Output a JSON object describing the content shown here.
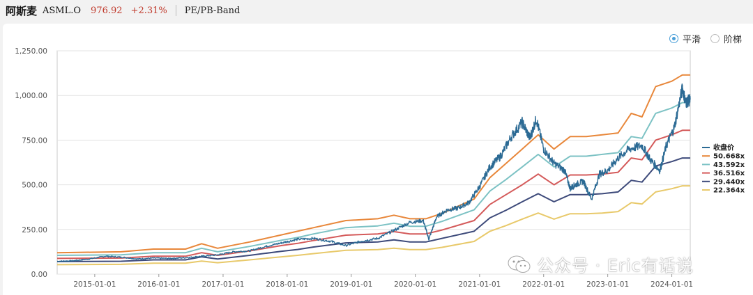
{
  "header": {
    "company_name": "阿斯麦",
    "ticker": "ASML.O",
    "price": "976.92",
    "change_pct": "+2.31%",
    "chart_mode": "PE/PB-Band"
  },
  "view_options": [
    {
      "label": "平滑",
      "selected": true
    },
    {
      "label": "阶梯",
      "selected": false
    }
  ],
  "watermark": "公众号 · Eric有话说",
  "colors": {
    "price": "#2b6a94",
    "band1": "#e8873a",
    "band2": "#7cc2c4",
    "band3": "#d45a5a",
    "band4": "#3d4a7a",
    "band5": "#e8c96a"
  },
  "chart_data": {
    "type": "line",
    "title": "",
    "xlabel": "",
    "ylabel": "",
    "y_ticks": [
      "0.00",
      "250.00",
      "500.00",
      "750.00",
      "1,000.00",
      "1,250.00"
    ],
    "ylim": [
      0,
      1250
    ],
    "x_ticks": [
      "2015-01-01",
      "2016-01-01",
      "2017-01-01",
      "2018-01-01",
      "2019-01-01",
      "2020-01-01",
      "2021-01-01",
      "2022-01-01",
      "2023-01-01",
      "2024-01-01"
    ],
    "xlim": [
      "2014-06-01",
      "2024-04-15"
    ],
    "grid": "horizontal",
    "legend_position": "right",
    "series": [
      {
        "name": "收盘价",
        "color": "#2b6a94",
        "points": [
          [
            "2014-06-01",
            72
          ],
          [
            "2014-09-01",
            75
          ],
          [
            "2014-12-01",
            85
          ],
          [
            "2015-03-01",
            100
          ],
          [
            "2015-06-01",
            95
          ],
          [
            "2015-09-01",
            85
          ],
          [
            "2015-12-01",
            90
          ],
          [
            "2016-03-01",
            88
          ],
          [
            "2016-06-01",
            92
          ],
          [
            "2016-09-01",
            100
          ],
          [
            "2016-12-01",
            108
          ],
          [
            "2017-03-01",
            125
          ],
          [
            "2017-06-01",
            130
          ],
          [
            "2017-09-01",
            155
          ],
          [
            "2017-12-01",
            175
          ],
          [
            "2018-03-01",
            195
          ],
          [
            "2018-06-01",
            200
          ],
          [
            "2018-09-01",
            185
          ],
          [
            "2018-12-01",
            160
          ],
          [
            "2019-03-01",
            185
          ],
          [
            "2019-06-01",
            200
          ],
          [
            "2019-09-01",
            245
          ],
          [
            "2019-12-01",
            290
          ],
          [
            "2020-02-15",
            300
          ],
          [
            "2020-03-18",
            195
          ],
          [
            "2020-05-01",
            320
          ],
          [
            "2020-07-01",
            360
          ],
          [
            "2020-09-01",
            370
          ],
          [
            "2020-11-01",
            400
          ],
          [
            "2021-01-01",
            490
          ],
          [
            "2021-03-01",
            600
          ],
          [
            "2021-05-01",
            660
          ],
          [
            "2021-07-01",
            770
          ],
          [
            "2021-09-01",
            850
          ],
          [
            "2021-10-15",
            760
          ],
          [
            "2021-11-20",
            870
          ],
          [
            "2022-01-01",
            700
          ],
          [
            "2022-03-01",
            620
          ],
          [
            "2022-05-01",
            580
          ],
          [
            "2022-06-01",
            480
          ],
          [
            "2022-07-01",
            500
          ],
          [
            "2022-08-15",
            520
          ],
          [
            "2022-10-01",
            420
          ],
          [
            "2022-11-15",
            560
          ],
          [
            "2023-01-01",
            580
          ],
          [
            "2023-03-01",
            650
          ],
          [
            "2023-05-01",
            700
          ],
          [
            "2023-07-15",
            720
          ],
          [
            "2023-09-01",
            640
          ],
          [
            "2023-10-25",
            580
          ],
          [
            "2023-12-01",
            720
          ],
          [
            "2024-01-15",
            820
          ],
          [
            "2024-03-01",
            1040
          ],
          [
            "2024-03-20",
            960
          ],
          [
            "2024-04-15",
            977
          ]
        ]
      },
      {
        "name": "50.668x",
        "color": "#e8873a",
        "points": [
          [
            "2014-06-01",
            120
          ],
          [
            "2015-06-01",
            125
          ],
          [
            "2015-12-01",
            140
          ],
          [
            "2016-06-01",
            140
          ],
          [
            "2016-09-01",
            170
          ],
          [
            "2016-12-01",
            145
          ],
          [
            "2017-06-01",
            180
          ],
          [
            "2017-12-01",
            220
          ],
          [
            "2018-03-01",
            240
          ],
          [
            "2018-06-01",
            260
          ],
          [
            "2018-12-01",
            300
          ],
          [
            "2019-06-01",
            310
          ],
          [
            "2019-09-01",
            330
          ],
          [
            "2019-12-01",
            310
          ],
          [
            "2020-03-01",
            310
          ],
          [
            "2020-06-01",
            340
          ],
          [
            "2020-12-01",
            420
          ],
          [
            "2021-03-01",
            540
          ],
          [
            "2021-06-01",
            620
          ],
          [
            "2021-09-01",
            700
          ],
          [
            "2021-12-01",
            780
          ],
          [
            "2022-03-01",
            700
          ],
          [
            "2022-06-01",
            770
          ],
          [
            "2022-09-01",
            770
          ],
          [
            "2022-12-01",
            780
          ],
          [
            "2023-03-01",
            790
          ],
          [
            "2023-05-15",
            900
          ],
          [
            "2023-07-15",
            880
          ],
          [
            "2023-10-01",
            1050
          ],
          [
            "2024-01-01",
            1080
          ],
          [
            "2024-03-01",
            1115
          ],
          [
            "2024-04-15",
            1115
          ]
        ]
      },
      {
        "name": "43.592x",
        "color": "#7cc2c4",
        "points": [
          [
            "2014-06-01",
            105
          ],
          [
            "2015-06-01",
            108
          ],
          [
            "2015-12-01",
            120
          ],
          [
            "2016-06-01",
            120
          ],
          [
            "2016-09-01",
            145
          ],
          [
            "2016-12-01",
            125
          ],
          [
            "2017-06-01",
            155
          ],
          [
            "2017-12-01",
            190
          ],
          [
            "2018-03-01",
            205
          ],
          [
            "2018-06-01",
            225
          ],
          [
            "2018-12-01",
            260
          ],
          [
            "2019-06-01",
            270
          ],
          [
            "2019-09-01",
            285
          ],
          [
            "2019-12-01",
            268
          ],
          [
            "2020-03-01",
            268
          ],
          [
            "2020-06-01",
            295
          ],
          [
            "2020-12-01",
            360
          ],
          [
            "2021-03-01",
            465
          ],
          [
            "2021-06-01",
            530
          ],
          [
            "2021-09-01",
            600
          ],
          [
            "2021-12-01",
            670
          ],
          [
            "2022-03-01",
            600
          ],
          [
            "2022-06-01",
            660
          ],
          [
            "2022-09-01",
            660
          ],
          [
            "2022-12-01",
            670
          ],
          [
            "2023-03-01",
            680
          ],
          [
            "2023-05-15",
            770
          ],
          [
            "2023-07-15",
            760
          ],
          [
            "2023-10-01",
            900
          ],
          [
            "2024-01-01",
            930
          ],
          [
            "2024-03-01",
            960
          ],
          [
            "2024-04-15",
            960
          ]
        ]
      },
      {
        "name": "36.516x",
        "color": "#d45a5a",
        "points": [
          [
            "2014-06-01",
            88
          ],
          [
            "2015-06-01",
            90
          ],
          [
            "2015-12-01",
            100
          ],
          [
            "2016-06-01",
            100
          ],
          [
            "2016-09-01",
            120
          ],
          [
            "2016-12-01",
            105
          ],
          [
            "2017-06-01",
            130
          ],
          [
            "2017-12-01",
            160
          ],
          [
            "2018-03-01",
            172
          ],
          [
            "2018-06-01",
            188
          ],
          [
            "2018-12-01",
            218
          ],
          [
            "2019-06-01",
            225
          ],
          [
            "2019-09-01",
            238
          ],
          [
            "2019-12-01",
            225
          ],
          [
            "2020-03-01",
            225
          ],
          [
            "2020-06-01",
            247
          ],
          [
            "2020-12-01",
            300
          ],
          [
            "2021-03-01",
            390
          ],
          [
            "2021-06-01",
            445
          ],
          [
            "2021-09-01",
            500
          ],
          [
            "2021-12-01",
            560
          ],
          [
            "2022-03-01",
            500
          ],
          [
            "2022-06-01",
            555
          ],
          [
            "2022-09-01",
            555
          ],
          [
            "2022-12-01",
            560
          ],
          [
            "2023-03-01",
            570
          ],
          [
            "2023-05-15",
            650
          ],
          [
            "2023-07-15",
            640
          ],
          [
            "2023-10-01",
            750
          ],
          [
            "2024-01-01",
            780
          ],
          [
            "2024-03-01",
            805
          ],
          [
            "2024-04-15",
            805
          ]
        ]
      },
      {
        "name": "29.440x",
        "color": "#3d4a7a",
        "points": [
          [
            "2014-06-01",
            70
          ],
          [
            "2015-06-01",
            72
          ],
          [
            "2015-12-01",
            80
          ],
          [
            "2016-06-01",
            80
          ],
          [
            "2016-09-01",
            97
          ],
          [
            "2016-12-01",
            85
          ],
          [
            "2017-06-01",
            105
          ],
          [
            "2017-12-01",
            128
          ],
          [
            "2018-03-01",
            138
          ],
          [
            "2018-06-01",
            152
          ],
          [
            "2018-12-01",
            175
          ],
          [
            "2019-06-01",
            180
          ],
          [
            "2019-09-01",
            192
          ],
          [
            "2019-12-01",
            180
          ],
          [
            "2020-03-01",
            180
          ],
          [
            "2020-06-01",
            200
          ],
          [
            "2020-12-01",
            240
          ],
          [
            "2021-03-01",
            315
          ],
          [
            "2021-06-01",
            358
          ],
          [
            "2021-09-01",
            405
          ],
          [
            "2021-12-01",
            450
          ],
          [
            "2022-03-01",
            405
          ],
          [
            "2022-06-01",
            445
          ],
          [
            "2022-09-01",
            445
          ],
          [
            "2022-12-01",
            450
          ],
          [
            "2023-03-01",
            460
          ],
          [
            "2023-05-15",
            525
          ],
          [
            "2023-07-15",
            515
          ],
          [
            "2023-10-01",
            605
          ],
          [
            "2024-01-01",
            630
          ],
          [
            "2024-03-01",
            650
          ],
          [
            "2024-04-15",
            650
          ]
        ]
      },
      {
        "name": "22.364x",
        "color": "#e8c96a",
        "points": [
          [
            "2014-06-01",
            53
          ],
          [
            "2015-06-01",
            55
          ],
          [
            "2015-12-01",
            61
          ],
          [
            "2016-06-01",
            61
          ],
          [
            "2016-09-01",
            73
          ],
          [
            "2016-12-01",
            64
          ],
          [
            "2017-06-01",
            80
          ],
          [
            "2017-12-01",
            97
          ],
          [
            "2018-03-01",
            105
          ],
          [
            "2018-06-01",
            115
          ],
          [
            "2018-12-01",
            133
          ],
          [
            "2019-06-01",
            137
          ],
          [
            "2019-09-01",
            145
          ],
          [
            "2019-12-01",
            137
          ],
          [
            "2020-03-01",
            137
          ],
          [
            "2020-06-01",
            150
          ],
          [
            "2020-12-01",
            183
          ],
          [
            "2021-03-01",
            240
          ],
          [
            "2021-06-01",
            272
          ],
          [
            "2021-09-01",
            308
          ],
          [
            "2021-12-01",
            342
          ],
          [
            "2022-03-01",
            308
          ],
          [
            "2022-06-01",
            338
          ],
          [
            "2022-09-01",
            338
          ],
          [
            "2022-12-01",
            342
          ],
          [
            "2023-03-01",
            350
          ],
          [
            "2023-05-15",
            400
          ],
          [
            "2023-07-15",
            392
          ],
          [
            "2023-10-01",
            460
          ],
          [
            "2024-01-01",
            478
          ],
          [
            "2024-03-01",
            494
          ],
          [
            "2024-04-15",
            494
          ]
        ]
      }
    ]
  }
}
